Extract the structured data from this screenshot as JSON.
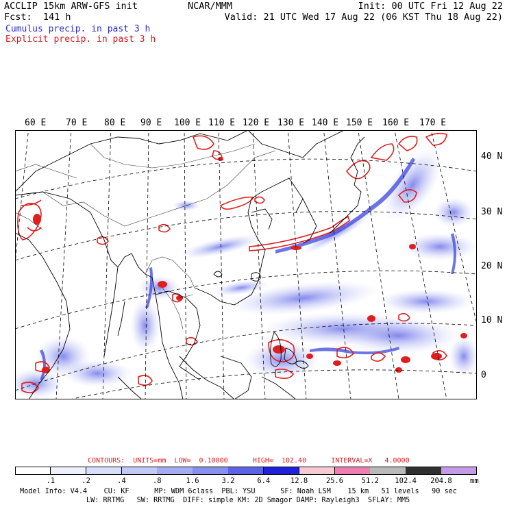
{
  "header": {
    "left_line1": "ACCLIP 15km ARW-GFS init",
    "left_line2": "Fcst:  141 h",
    "center": "NCAR/MMM",
    "right_line1": "Init: 00 UTC Fri 12 Aug 22",
    "right_line2": "Valid: 21 UTC Wed 17 Aug 22 (06 KST Thu 18 Aug 22)"
  },
  "legend": {
    "cumulus": "Cumulus precip. in past 3 h",
    "explicit": "Explicit precip. in past 3 h",
    "cumulus_color": "#2c2cd0",
    "explicit_color": "#d81b1b"
  },
  "map": {
    "lon_labels": [
      "60 E",
      "70 E",
      "80 E",
      "90 E",
      "100 E",
      "110 E",
      "120 E",
      "130 E",
      "140 E",
      "150 E",
      "160 E",
      "170 E"
    ],
    "lat_labels": [
      "40 N",
      "30 N",
      "20 N",
      "10 N",
      "0"
    ]
  },
  "contours_line": "CONTOURS:  UNITS=mm  LOW=  0.10000      HIGH=  102.40      INTERVAL=X   4.0000",
  "colorbar": {
    "labels": [
      ".1",
      ".2",
      ".4",
      ".8",
      "1.6",
      "3.2",
      "6.4",
      "12.8",
      "25.6",
      "51.2",
      "102.4",
      "204.8"
    ],
    "unit": "mm",
    "colors": [
      "#ffffff",
      "#eef0fc",
      "#d9defb",
      "#c3c8f7",
      "#a6acf2",
      "#8790ee",
      "#5c63e6",
      "#1f22d8",
      "#f7c9d2",
      "#ee7fb0",
      "#b9b9b9",
      "#303030",
      "#c59be8"
    ]
  },
  "footer": {
    "line1": "Model Info: V4.4    CU: KF      MP: WDM 6class  PBL: YSU      SF: Noah LSM    15 km   51 levels   90 sec",
    "line2": "LW: RRTMG   SW: RRTMG  DIFF: simple KM: 2D Smagor DAMP: Rayleigh3  SFLAY: MM5"
  }
}
